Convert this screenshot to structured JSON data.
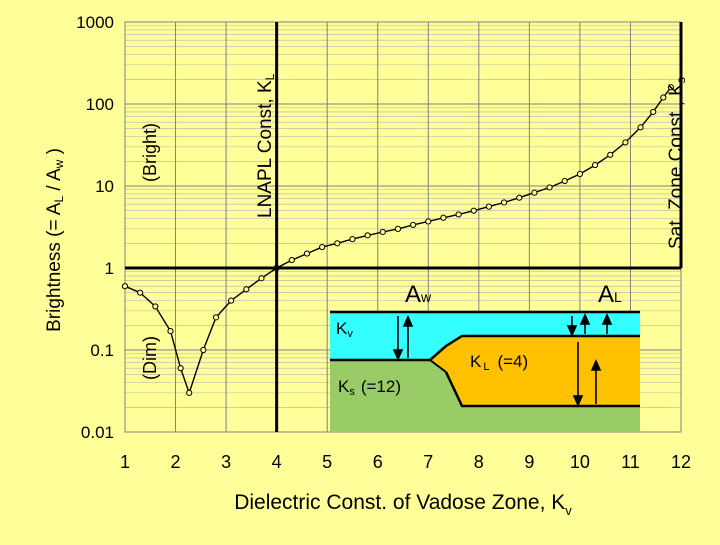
{
  "chart_data": {
    "type": "line",
    "x_ticks": [
      "1",
      "2",
      "3",
      "4",
      "5",
      "6",
      "7",
      "8",
      "9",
      "10",
      "11",
      "12"
    ],
    "y_ticks": [
      "0.01",
      "0.1",
      "1",
      "10",
      "100",
      "1000"
    ],
    "xlim": [
      1,
      12
    ],
    "ylim": [
      0.01,
      1000
    ],
    "y_scale": "log",
    "grid": true,
    "xlabel_main": "Dielectric Const. of Vadose Zone, K",
    "xlabel_sub": "v",
    "ylabel_parts": {
      "a": "Brightness (= A",
      "b": "L",
      "c": " / A",
      "d": "w",
      "e": " )"
    },
    "annotations": {
      "bright": "(Bright)",
      "dim": "(Dim)",
      "lnapl_main": "LNAPL Const, K",
      "lnapl_sub": "L",
      "sat_main": "Sat. Zone Const., K",
      "sat_sub": "s"
    },
    "series": [
      {
        "x": [
          1.0,
          1.3,
          1.6,
          1.9,
          2.1,
          2.27,
          2.55,
          2.8,
          3.1,
          3.4,
          3.7,
          4.0,
          4.3,
          4.6,
          4.9,
          5.2,
          5.5,
          5.8,
          6.1,
          6.4,
          6.7,
          7.0,
          7.3,
          7.6,
          7.9,
          8.2,
          8.5,
          8.8,
          9.1,
          9.4,
          9.7,
          10.0,
          10.3,
          10.6,
          10.9,
          11.2,
          11.45,
          11.65,
          11.8
        ],
        "y": [
          0.6,
          0.5,
          0.34,
          0.17,
          0.06,
          0.03,
          0.1,
          0.25,
          0.4,
          0.55,
          0.75,
          1.0,
          1.25,
          1.5,
          1.8,
          2.0,
          2.25,
          2.5,
          2.75,
          3.0,
          3.35,
          3.7,
          4.1,
          4.5,
          5.0,
          5.6,
          6.3,
          7.2,
          8.3,
          9.6,
          11.5,
          14,
          18,
          24,
          34,
          52,
          80,
          120,
          160
        ]
      }
    ],
    "inset": {
      "Aw": {
        "main": "A",
        "sub": "w"
      },
      "AL": {
        "main": "A",
        "sub": "L"
      },
      "Kv": {
        "main": "K",
        "sub": "v"
      },
      "KL": {
        "main": "K",
        "sub": "L",
        "rest": "(=4)"
      },
      "Ks": {
        "main": "K",
        "sub": "s",
        "rest": "(=12)"
      },
      "colors": {
        "vadose": "#33ffff",
        "lnapl": "#ffc000",
        "saturated": "#99cc66"
      }
    }
  }
}
